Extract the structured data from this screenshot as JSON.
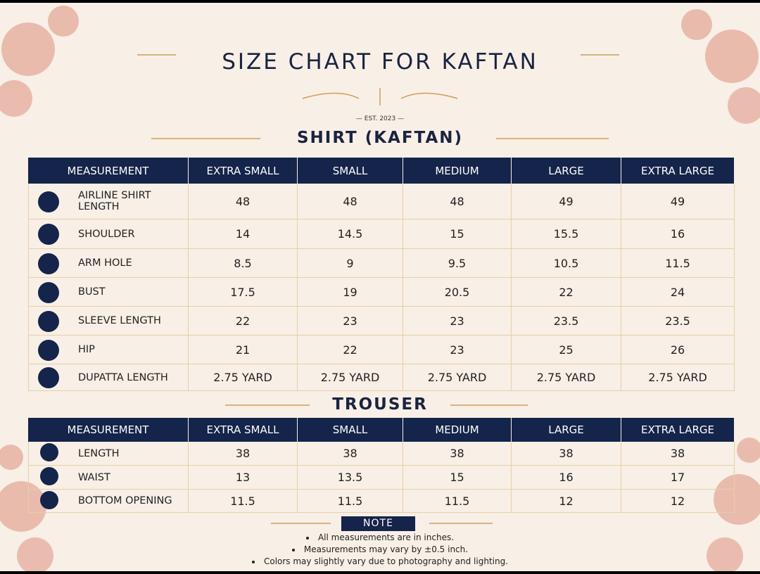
{
  "header": {
    "title": "SIZE CHART FOR KAFTAN",
    "est": "— EST. 2023 —"
  },
  "shirt": {
    "title": "SHIRT (KAFTAN)",
    "columns": [
      "MEASUREMENT",
      "EXTRA SMALL",
      "SMALL",
      "MEDIUM",
      "LARGE",
      "EXTRA LARGE"
    ],
    "rows": [
      [
        "AIRLINE SHIRT LENGTH",
        "48",
        "48",
        "48",
        "49",
        "49"
      ],
      [
        "SHOULDER",
        "14",
        "14.5",
        "15",
        "15.5",
        "16"
      ],
      [
        "ARM HOLE",
        "8.5",
        "9",
        "9.5",
        "10.5",
        "11.5"
      ],
      [
        "BUST",
        "17.5",
        "19",
        "20.5",
        "22",
        "24"
      ],
      [
        "SLEEVE LENGTH",
        "22",
        "23",
        "23",
        "23.5",
        "23.5"
      ],
      [
        "HIP",
        "21",
        "22",
        "23",
        "25",
        "26"
      ],
      [
        "DUPATTA LENGTH",
        "2.75 YARD",
        "2.75 YARD",
        "2.75 YARD",
        "2.75 YARD",
        "2.75 YARD"
      ]
    ]
  },
  "trouser": {
    "title": "TROUSER",
    "columns": [
      "MEASUREMENT",
      "EXTRA SMALL",
      "SMALL",
      "MEDIUM",
      "LARGE",
      "EXTRA LARGE"
    ],
    "rows": [
      [
        "LENGTH",
        "38",
        "38",
        "38",
        "38",
        "38"
      ],
      [
        "WAIST",
        "13",
        "13.5",
        "15",
        "16",
        "17"
      ],
      [
        "BOTTOM OPENING",
        "11.5",
        "11.5",
        "11.5",
        "12",
        "12"
      ]
    ]
  },
  "note": {
    "title": "NOTE",
    "items": [
      "All measurements are in inches.",
      "Measurements may vary by ±0.5 inch.",
      "Colors may slightly vary due to photography and lighting."
    ]
  }
}
